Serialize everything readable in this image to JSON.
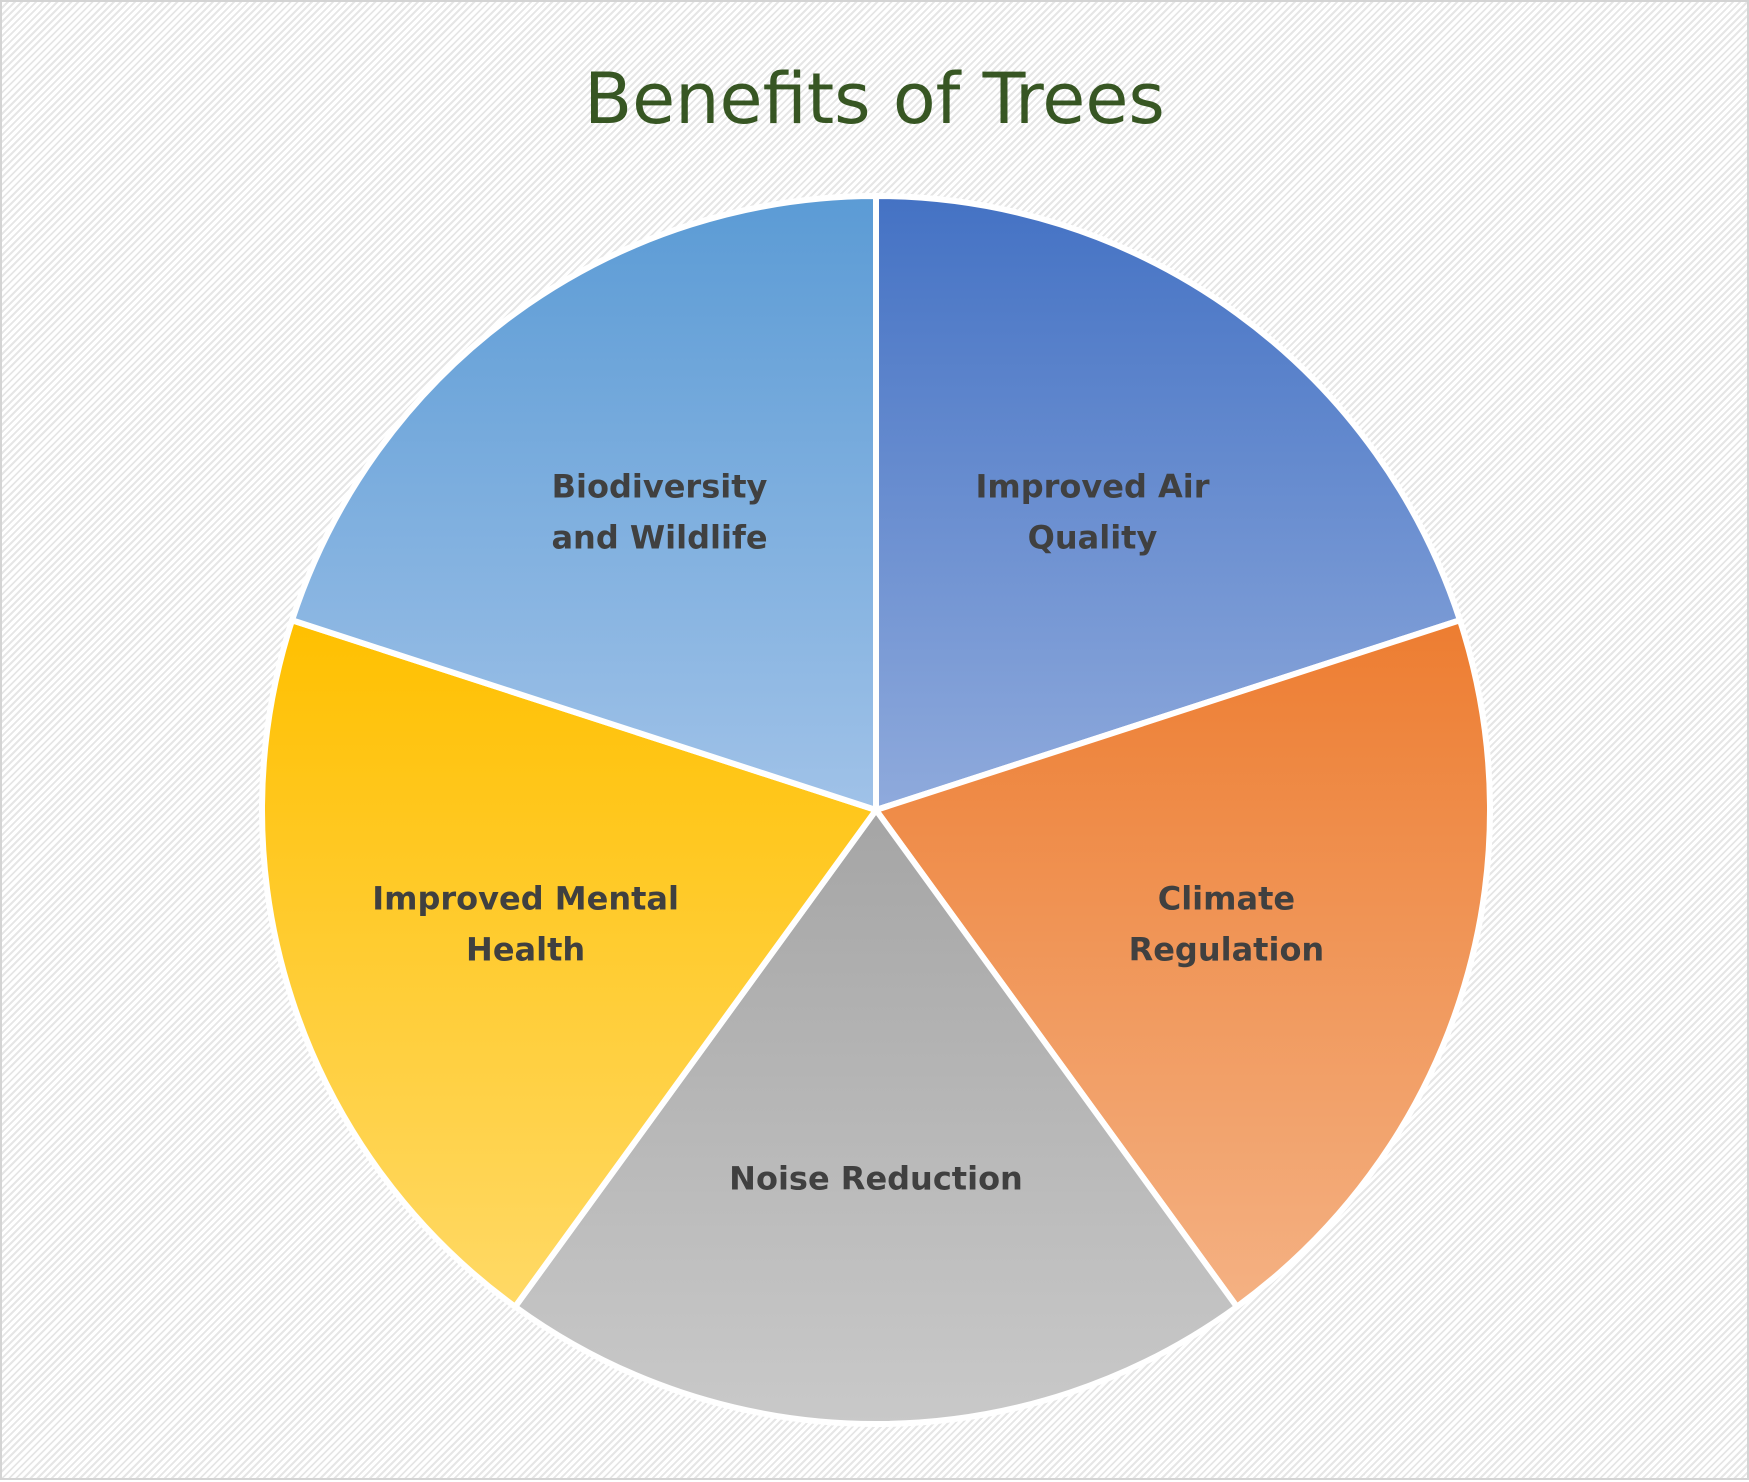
{
  "chart_data": {
    "type": "pie",
    "title": "Benefits of Trees",
    "categories": [
      "Improved Air Quality",
      "Climate Regulation",
      "Noise Reduction",
      "Improved Mental Health",
      "Biodiversity and Wildlife"
    ],
    "label_lines": [
      [
        "Improved Air",
        "Quality"
      ],
      [
        "Climate",
        "Regulation"
      ],
      [
        "Noise Reduction"
      ],
      [
        "Improved Mental",
        "Health"
      ],
      [
        "Biodiversity",
        "and Wildlife"
      ]
    ],
    "values": [
      20,
      20,
      20,
      20,
      20
    ],
    "colors": [
      [
        "#4472c4",
        "#8faadc"
      ],
      [
        "#ed7d31",
        "#f4b183"
      ],
      [
        "#a5a5a5",
        "#c9c9c9"
      ],
      [
        "#ffc000",
        "#ffd966"
      ],
      [
        "#5b9bd5",
        "#a0c2e8"
      ]
    ],
    "legend": "none",
    "data_labels": "category names inside slices",
    "title_color": "#375623",
    "label_color": "#404040"
  }
}
